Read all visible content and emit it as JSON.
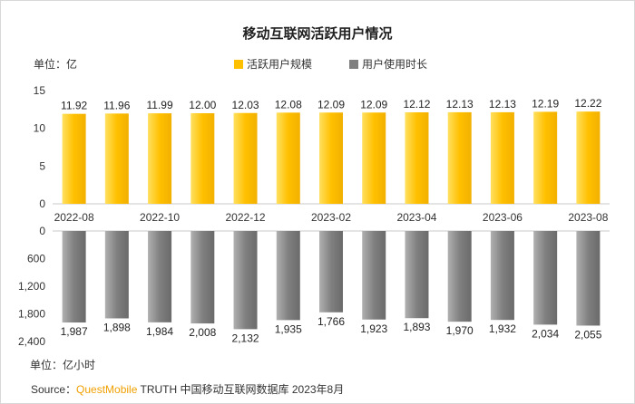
{
  "title": "移动互联网活跃用户情况",
  "unit_top": "单位：亿",
  "unit_bottom": "单位：亿小时",
  "legend": [
    {
      "label": "活跃用户规模",
      "color": "#ffc000"
    },
    {
      "label": "用户使用时长",
      "color": "#7f7f7f"
    }
  ],
  "source": {
    "prefix": "Source：",
    "brand": "QuestMobile",
    "rest": " TRUTH 中国移动互联网数据库 2023年8月"
  },
  "chart_data": [
    {
      "type": "bar",
      "categories": [
        "2022-08",
        "2022-09",
        "2022-10",
        "2022-11",
        "2022-12",
        "2023-01",
        "2023-02",
        "2023-03",
        "2023-04",
        "2023-05",
        "2023-06",
        "2023-07",
        "2023-08"
      ],
      "x_tick_labels": [
        "2022-08",
        "2022-10",
        "2022-12",
        "2023-02",
        "2023-04",
        "2023-06",
        "2023-08"
      ],
      "series": [
        {
          "name": "活跃用户规模",
          "values": [
            11.92,
            11.96,
            11.99,
            12.0,
            12.03,
            12.08,
            12.09,
            12.09,
            12.12,
            12.13,
            12.13,
            12.19,
            12.22
          ],
          "labels": [
            "11.92",
            "11.96",
            "11.99",
            "12.00",
            "12.03",
            "12.08",
            "12.09",
            "12.09",
            "12.12",
            "12.13",
            "12.13",
            "12.19",
            "12.22"
          ],
          "color": "#ffc000"
        }
      ],
      "yticks": [
        "0",
        "5",
        "10",
        "15"
      ],
      "ylim": [
        0,
        15
      ]
    },
    {
      "type": "bar",
      "categories": [
        "2022-08",
        "2022-09",
        "2022-10",
        "2022-11",
        "2022-12",
        "2023-01",
        "2023-02",
        "2023-03",
        "2023-04",
        "2023-05",
        "2023-06",
        "2023-07",
        "2023-08"
      ],
      "series": [
        {
          "name": "用户使用时长",
          "values": [
            1987,
            1898,
            1984,
            2008,
            2132,
            1935,
            1766,
            1923,
            1893,
            1970,
            1932,
            2034,
            2055
          ],
          "labels": [
            "1,987",
            "1,898",
            "1,984",
            "2,008",
            "2,132",
            "1,935",
            "1,766",
            "1,923",
            "1,893",
            "1,970",
            "1,932",
            "2,034",
            "2,055"
          ],
          "color": "#7f7f7f"
        }
      ],
      "yticks": [
        "0",
        "600",
        "1,200",
        "1,800",
        "2,400"
      ],
      "ylim": [
        0,
        2400
      ],
      "inverted": true
    }
  ]
}
